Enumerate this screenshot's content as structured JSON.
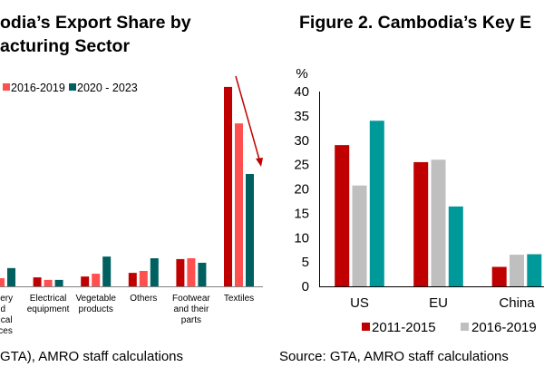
{
  "chart_data": [
    {
      "type": "bar",
      "title_lines": [
        "odia’s Export Share by",
        "acturing Sector"
      ],
      "categories": [
        [
          "hinery",
          "nd",
          "anical",
          "ances"
        ],
        [
          "Electrical",
          "equipment"
        ],
        [
          "Vegetable",
          "products"
        ],
        [
          "Others"
        ],
        [
          "Footwear",
          "and their",
          "parts"
        ],
        [
          "Textiles"
        ]
      ],
      "series": [
        {
          "name": "",
          "color": "#c00000",
          "values": [
            null,
            3.2,
            3.5,
            4.8,
            9.7,
            71
          ]
        },
        {
          "name": "2016-2019",
          "color": "#ff5050",
          "values": [
            2.9,
            2.3,
            4.5,
            5.5,
            10.0,
            58
          ]
        },
        {
          "name": "2020 - 2023",
          "color": "#006060",
          "values": [
            6.5,
            2.3,
            10.6,
            10.0,
            8.4,
            40
          ]
        }
      ],
      "annotation": "downward arrow over Textiles",
      "arrow_color": "#c00000",
      "grid": false,
      "legend": "top",
      "source": "GTA), AMRO staff calculations"
    },
    {
      "type": "bar",
      "title": "Figure 2. Cambodia’s Key E",
      "ylabel": "%",
      "ylim": [
        0,
        40
      ],
      "yticks": [
        "0",
        "5",
        "10",
        "15",
        "20",
        "25",
        "30",
        "35",
        "40"
      ],
      "categories": [
        "US",
        "EU",
        "China"
      ],
      "series": [
        {
          "name": "2011-2015",
          "color": "#c00000",
          "values": [
            29,
            25.5,
            4
          ]
        },
        {
          "name": "2016-2019",
          "color": "#bfbfbf",
          "values": [
            20.7,
            26,
            6.5
          ]
        },
        {
          "name": "",
          "color": "#009999",
          "values": [
            34,
            16.4,
            6.6
          ]
        }
      ],
      "grid": false,
      "legend": "bottom",
      "source": "Source: GTA, AMRO staff calculations"
    }
  ]
}
